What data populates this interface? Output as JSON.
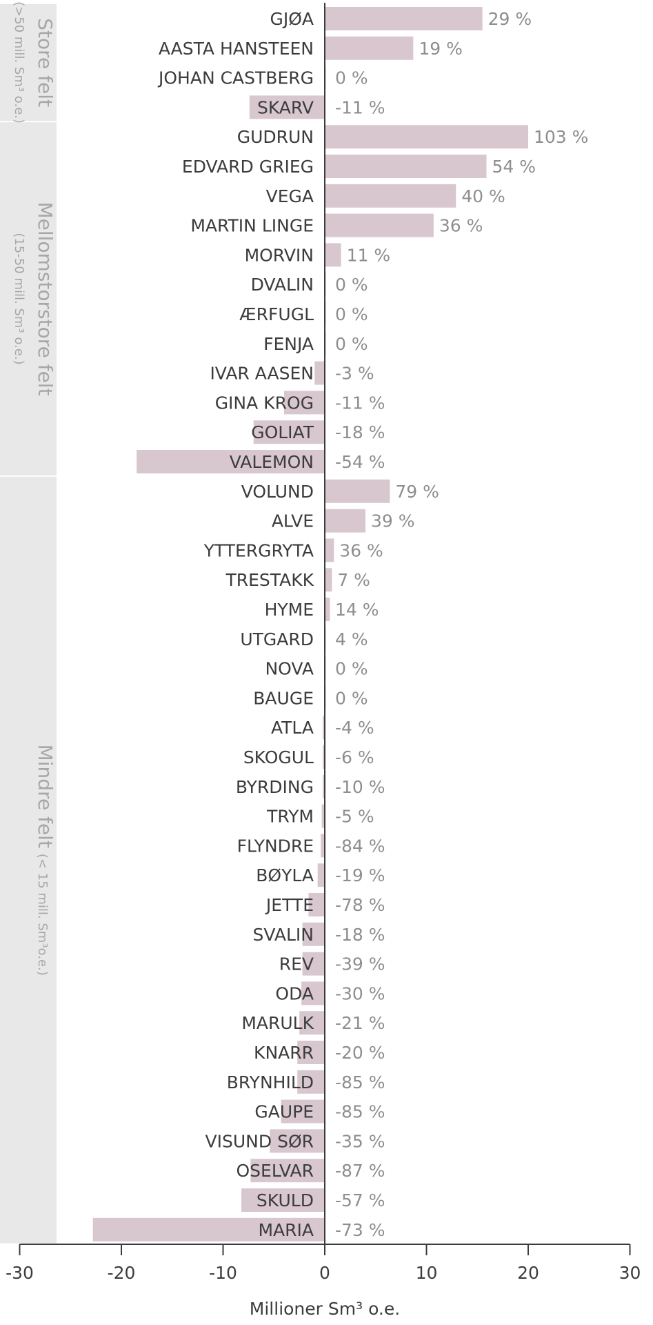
{
  "chart_data": {
    "type": "bar",
    "orientation": "horizontal",
    "xlabel": "Millioner Sm³ o.e.",
    "xlim": [
      -30,
      30
    ],
    "xticks": [
      -30,
      -20,
      -10,
      0,
      10,
      20,
      30
    ],
    "xtick_labels": [
      "-30",
      "-20",
      "-10",
      "0",
      "10",
      "20",
      "30"
    ],
    "bar_color": "#d9c7cf",
    "groups": [
      {
        "title": "Store felt",
        "subtitle": "(>50 mill. Sm³ o.e.)",
        "first": 0,
        "last": 3
      },
      {
        "title": "Mellomstorstore felt",
        "subtitle": "(15-50 mill. Sm³ o.e.)",
        "first": 4,
        "last": 15
      },
      {
        "title": "Mindre felt",
        "subtitle": "(< 15 mill. Sm³o.e.)",
        "first": 16,
        "last": 41
      }
    ],
    "categories": [
      "GJØA",
      "AASTA HANSTEEN",
      "JOHAN CASTBERG",
      "SKARV",
      "GUDRUN",
      "EDVARD GRIEG",
      "VEGA",
      "MARTIN LINGE",
      "MORVIN",
      "DVALIN",
      "ÆRFUGL",
      "FENJA",
      "IVAR AASEN",
      "GINA KROG",
      "GOLIAT",
      "VALEMON",
      "VOLUND",
      "ALVE",
      "YTTERGRYTA",
      "TRESTAKK",
      "HYME",
      "UTGARD",
      "NOVA",
      "BAUGE",
      "ATLA",
      "SKOGUL",
      "BYRDING",
      "TRYM",
      "FLYNDRE",
      "BØYLA",
      "JETTE",
      "SVALIN",
      "REV",
      "ODA",
      "MARULK",
      "KNARR",
      "BRYNHILD",
      "GAUPE",
      "VISUND SØR",
      "OSELVAR",
      "SKULD",
      "MARIA"
    ],
    "values": [
      15.5,
      8.7,
      0.1,
      -7.4,
      20.0,
      15.9,
      12.9,
      10.7,
      1.6,
      0.0,
      0.0,
      0.0,
      -1.0,
      -4.0,
      -7.0,
      -18.5,
      6.4,
      4.0,
      0.9,
      0.7,
      0.5,
      0.1,
      0.0,
      0.0,
      -0.2,
      -0.2,
      -0.2,
      -0.3,
      -0.4,
      -0.7,
      -1.6,
      -2.2,
      -2.2,
      -2.3,
      -2.5,
      -2.7,
      -2.7,
      -4.3,
      -5.4,
      -7.3,
      -8.2,
      -22.8
    ],
    "percent_labels": [
      "29 %",
      "19 %",
      "0 %",
      "-11 %",
      "103 %",
      "54 %",
      "40 %",
      "36 %",
      "11 %",
      "0 %",
      "0 %",
      "0 %",
      "-3 %",
      "-11 %",
      "-18 %",
      "-54 %",
      "79 %",
      "39 %",
      "36 %",
      "7 %",
      "14 %",
      "4 %",
      "0 %",
      "0 %",
      "-4 %",
      "-6 %",
      "-10 %",
      "-5 %",
      "-84 %",
      "-19 %",
      "-78 %",
      "-18 %",
      "-39 %",
      "-30 %",
      "-21 %",
      "-20 %",
      "-85 %",
      "-85 %",
      "-35 %",
      "-87 %",
      "-57 %",
      "-73 %"
    ]
  }
}
